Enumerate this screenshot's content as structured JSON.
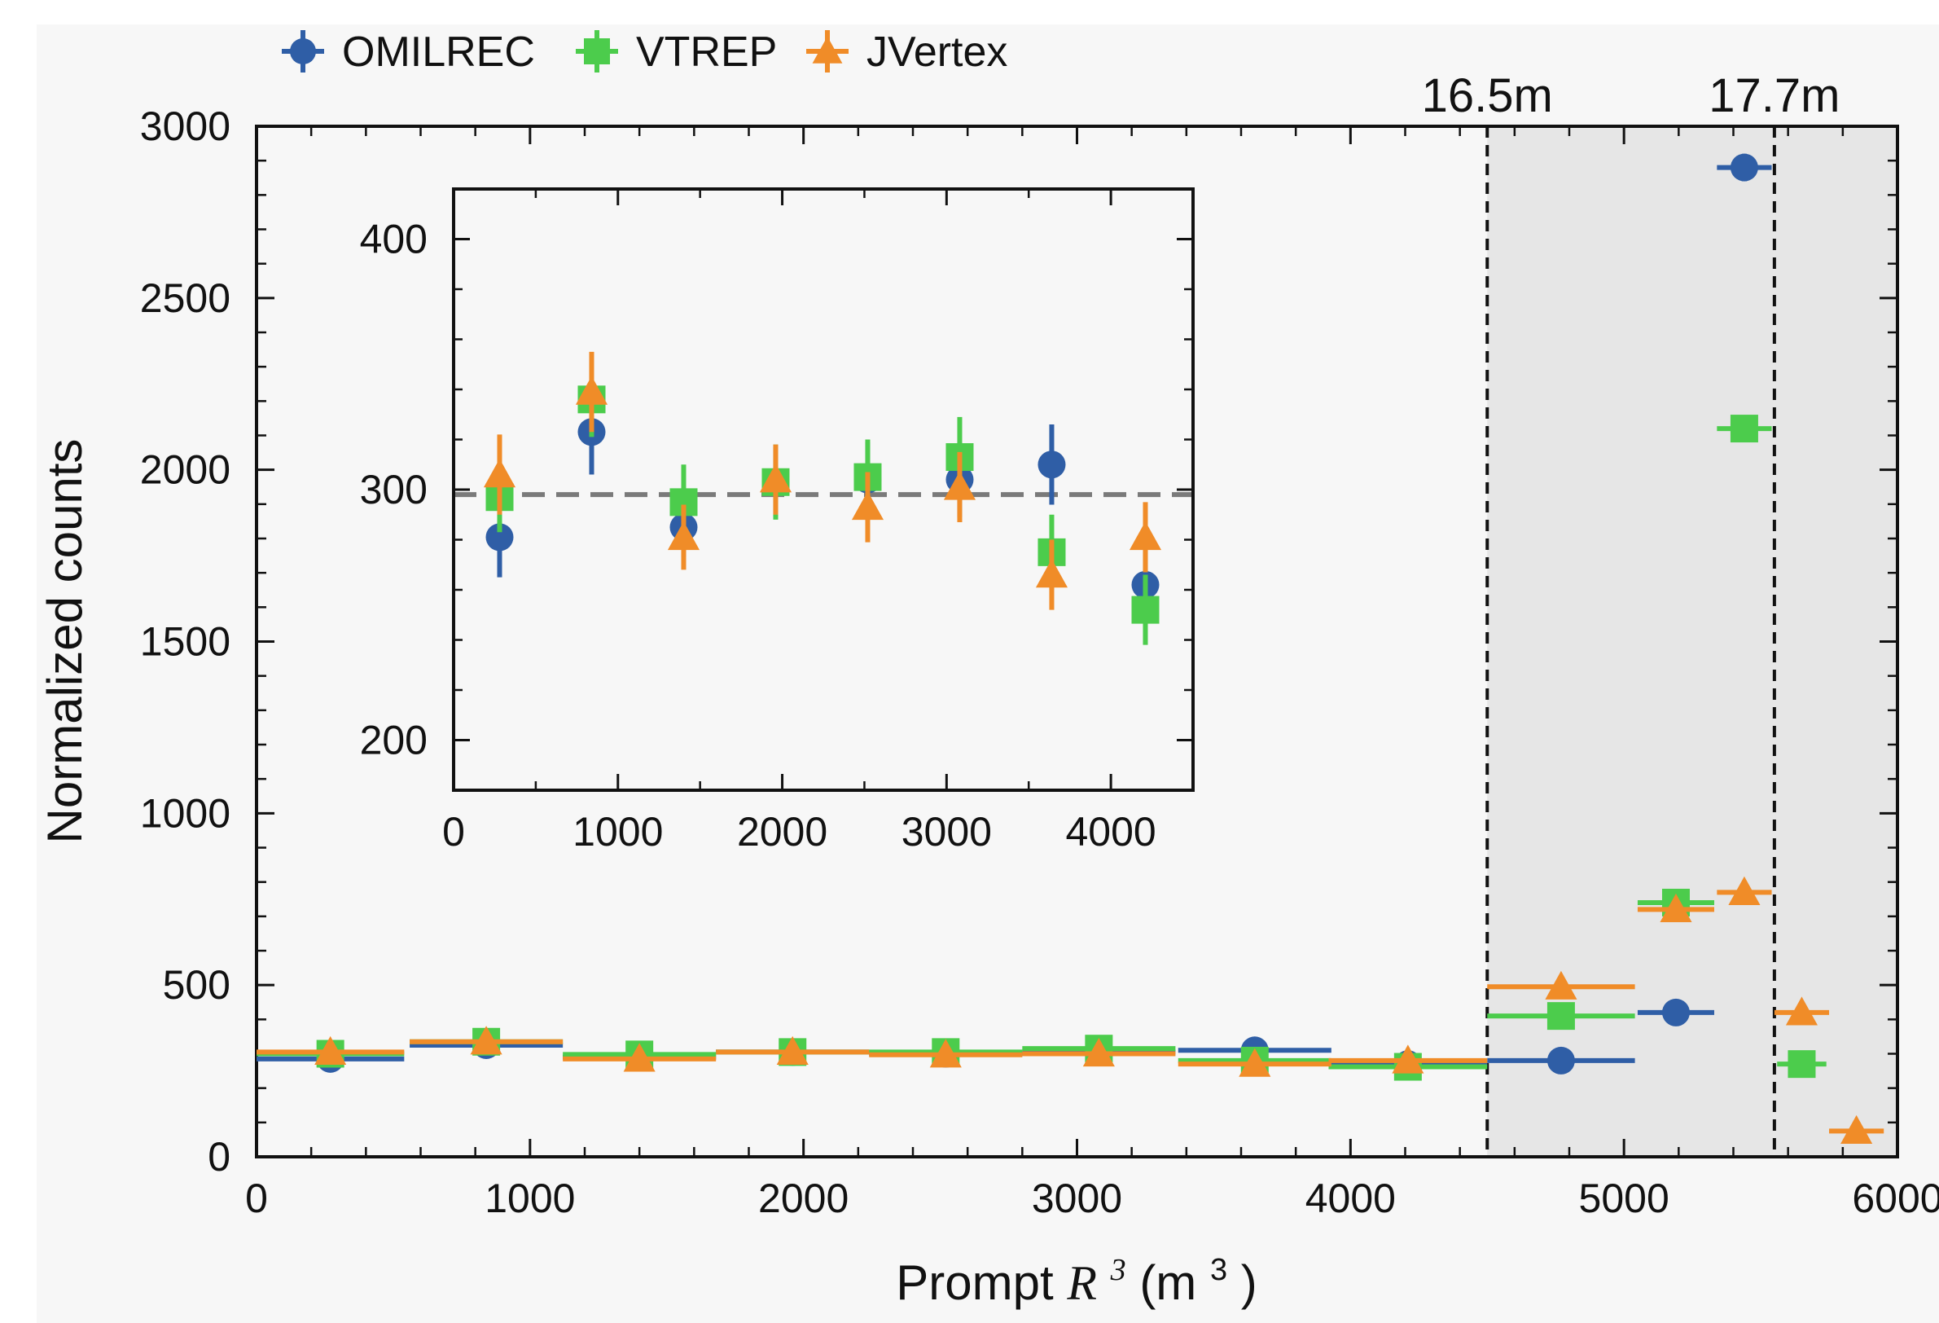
{
  "chart_data": {
    "type": "scatter",
    "colors": {
      "OMILREC": "#2f5ea6",
      "VTREP": "#4ccc4c",
      "JVertex": "#f08c28",
      "shade": "#e6e6e6",
      "reference": "#7a7a7a"
    },
    "markers": {
      "OMILREC": "circle",
      "VTREP": "square",
      "JVertex": "triangle"
    },
    "legend": {
      "position": "top-left",
      "entries": [
        "OMILREC",
        "VTREP",
        "JVertex"
      ]
    },
    "main": {
      "xlabel_prefix": "Prompt ",
      "xlabel_var": "R",
      "xlabel_exp": "3",
      "xlabel_unit_open": " (m",
      "xlabel_unit_exp": "3",
      "xlabel_unit_close": ")",
      "ylabel": "Normalized counts",
      "xlim": [
        0,
        6000
      ],
      "ylim": [
        0,
        3000
      ],
      "xticks": [
        "0",
        "1000",
        "2000",
        "3000",
        "4000",
        "5000",
        "6000"
      ],
      "yticks": [
        "0",
        "500",
        "1000",
        "1500",
        "2000",
        "2500",
        "3000"
      ],
      "shaded_regions": [
        [
          4500,
          5550
        ],
        [
          5550,
          6000
        ]
      ],
      "vlines": [
        {
          "x": 4500,
          "label": "16.5m"
        },
        {
          "x": 5550,
          "label": "17.7m"
        }
      ],
      "series": [
        {
          "name": "OMILREC",
          "points": [
            {
              "x": 270,
              "y": 285,
              "xerr": 270,
              "yerr": 10
            },
            {
              "x": 840,
              "y": 325,
              "xerr": 280,
              "yerr": 10
            },
            {
              "x": 1400,
              "y": 290,
              "xerr": 280,
              "yerr": 10
            },
            {
              "x": 1960,
              "y": 305,
              "xerr": 280,
              "yerr": 10
            },
            {
              "x": 2520,
              "y": 300,
              "xerr": 280,
              "yerr": 10
            },
            {
              "x": 3080,
              "y": 305,
              "xerr": 280,
              "yerr": 10
            },
            {
              "x": 3650,
              "y": 310,
              "xerr": 280,
              "yerr": 10
            },
            {
              "x": 4210,
              "y": 270,
              "xerr": 290,
              "yerr": 10
            },
            {
              "x": 4770,
              "y": 280,
              "xerr": 270,
              "yerr": 10
            },
            {
              "x": 5190,
              "y": 420,
              "xerr": 140,
              "yerr": 15
            },
            {
              "x": 5440,
              "y": 2880,
              "xerr": 100,
              "yerr": 40
            }
          ]
        },
        {
          "name": "VTREP",
          "points": [
            {
              "x": 270,
              "y": 300,
              "xerr": 270,
              "yerr": 10
            },
            {
              "x": 840,
              "y": 335,
              "xerr": 280,
              "yerr": 10
            },
            {
              "x": 1400,
              "y": 298,
              "xerr": 280,
              "yerr": 10
            },
            {
              "x": 1960,
              "y": 305,
              "xerr": 280,
              "yerr": 10
            },
            {
              "x": 2520,
              "y": 305,
              "xerr": 280,
              "yerr": 10
            },
            {
              "x": 3080,
              "y": 315,
              "xerr": 280,
              "yerr": 10
            },
            {
              "x": 3650,
              "y": 280,
              "xerr": 280,
              "yerr": 10
            },
            {
              "x": 4210,
              "y": 262,
              "xerr": 290,
              "yerr": 10
            },
            {
              "x": 4770,
              "y": 410,
              "xerr": 270,
              "yerr": 10
            },
            {
              "x": 5190,
              "y": 740,
              "xerr": 140,
              "yerr": 15
            },
            {
              "x": 5440,
              "y": 2120,
              "xerr": 100,
              "yerr": 30
            },
            {
              "x": 5650,
              "y": 270,
              "xerr": 90,
              "yerr": 10
            }
          ]
        },
        {
          "name": "JVertex",
          "points": [
            {
              "x": 270,
              "y": 305,
              "xerr": 270,
              "yerr": 10
            },
            {
              "x": 840,
              "y": 335,
              "xerr": 280,
              "yerr": 10
            },
            {
              "x": 1400,
              "y": 285,
              "xerr": 280,
              "yerr": 10
            },
            {
              "x": 1960,
              "y": 305,
              "xerr": 280,
              "yerr": 10
            },
            {
              "x": 2520,
              "y": 297,
              "xerr": 280,
              "yerr": 10
            },
            {
              "x": 3080,
              "y": 300,
              "xerr": 280,
              "yerr": 10
            },
            {
              "x": 3650,
              "y": 270,
              "xerr": 280,
              "yerr": 10
            },
            {
              "x": 4210,
              "y": 280,
              "xerr": 290,
              "yerr": 10
            },
            {
              "x": 4770,
              "y": 495,
              "xerr": 270,
              "yerr": 10
            },
            {
              "x": 5190,
              "y": 720,
              "xerr": 140,
              "yerr": 15
            },
            {
              "x": 5440,
              "y": 770,
              "xerr": 100,
              "yerr": 15
            },
            {
              "x": 5650,
              "y": 420,
              "xerr": 100,
              "yerr": 10
            },
            {
              "x": 5850,
              "y": 75,
              "xerr": 100,
              "yerr": 10
            }
          ]
        }
      ]
    },
    "inset": {
      "xlim": [
        0,
        4500
      ],
      "ylim": [
        180,
        420
      ],
      "xticks": [
        "0",
        "1000",
        "2000",
        "3000",
        "4000"
      ],
      "yticks": [
        "200",
        "300",
        "400"
      ],
      "reference_line": 298,
      "series": [
        {
          "name": "OMILREC",
          "points": [
            {
              "x": 280,
              "y": 281,
              "yerr": 16
            },
            {
              "x": 840,
              "y": 323,
              "yerr": 17
            },
            {
              "x": 1400,
              "y": 285,
              "yerr": 12
            },
            {
              "x": 1960,
              "y": 303,
              "yerr": 14
            },
            {
              "x": 2520,
              "y": 304,
              "yerr": 15
            },
            {
              "x": 3080,
              "y": 304,
              "yerr": 15
            },
            {
              "x": 3640,
              "y": 310,
              "yerr": 16
            },
            {
              "x": 4210,
              "y": 262,
              "yerr": 14
            }
          ]
        },
        {
          "name": "VTREP",
          "points": [
            {
              "x": 280,
              "y": 297,
              "yerr": 14
            },
            {
              "x": 840,
              "y": 336,
              "yerr": 15
            },
            {
              "x": 1400,
              "y": 295,
              "yerr": 15
            },
            {
              "x": 1960,
              "y": 303,
              "yerr": 15
            },
            {
              "x": 2520,
              "y": 305,
              "yerr": 15
            },
            {
              "x": 3080,
              "y": 313,
              "yerr": 16
            },
            {
              "x": 3640,
              "y": 275,
              "yerr": 15
            },
            {
              "x": 4210,
              "y": 252,
              "yerr": 14
            }
          ]
        },
        {
          "name": "JVertex",
          "points": [
            {
              "x": 280,
              "y": 306,
              "yerr": 16
            },
            {
              "x": 840,
              "y": 339,
              "yerr": 16
            },
            {
              "x": 1400,
              "y": 281,
              "yerr": 13
            },
            {
              "x": 1960,
              "y": 304,
              "yerr": 14
            },
            {
              "x": 2520,
              "y": 293,
              "yerr": 14
            },
            {
              "x": 3080,
              "y": 301,
              "yerr": 14
            },
            {
              "x": 3640,
              "y": 266,
              "yerr": 14
            },
            {
              "x": 4210,
              "y": 281,
              "yerr": 14
            }
          ]
        }
      ]
    }
  }
}
